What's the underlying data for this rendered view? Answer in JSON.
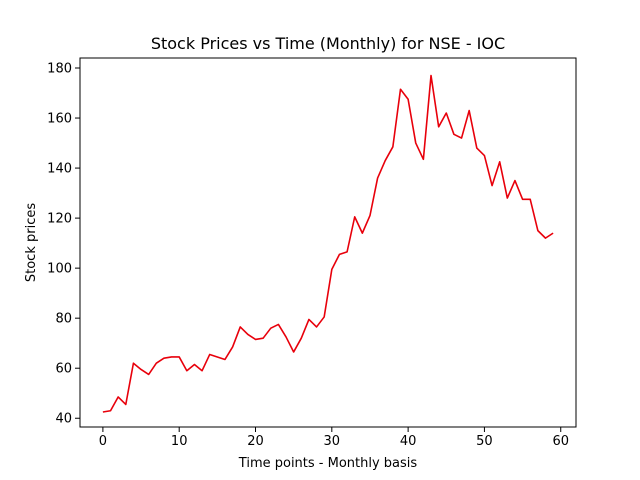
{
  "chart_data": {
    "type": "line",
    "title": "Stock Prices vs Time (Monthly) for NSE - IOC",
    "xlabel": "Time points - Monthly basis",
    "ylabel": "Stock prices",
    "xlim": [
      -3,
      62
    ],
    "ylim": [
      36.5,
      184
    ],
    "xticks": [
      0,
      10,
      20,
      30,
      40,
      50,
      60
    ],
    "yticks": [
      40,
      60,
      80,
      100,
      120,
      140,
      160,
      180
    ],
    "grid": false,
    "series": [
      {
        "color": "#e8000b",
        "x": [
          0,
          1,
          2,
          3,
          4,
          5,
          6,
          7,
          8,
          9,
          10,
          11,
          12,
          13,
          14,
          15,
          16,
          17,
          18,
          19,
          20,
          21,
          22,
          23,
          24,
          25,
          26,
          27,
          28,
          29,
          30,
          31,
          32,
          33,
          34,
          35,
          36,
          37,
          38,
          39,
          40,
          41,
          42,
          43,
          44,
          45,
          46,
          47,
          48,
          49,
          50,
          51,
          52,
          53,
          54,
          55,
          56,
          57,
          58,
          59
        ],
        "values": [
          42.5,
          43,
          48.5,
          45.5,
          62,
          59.5,
          57.5,
          62,
          64,
          64.5,
          64.5,
          59,
          61.5,
          59,
          65.5,
          64.5,
          63.5,
          68.5,
          76.5,
          73.5,
          71.5,
          72,
          76,
          77.5,
          72.5,
          66.5,
          72,
          79.5,
          76.5,
          80.5,
          99.5,
          105.5,
          106.5,
          120.5,
          114,
          121,
          136,
          143,
          148.5,
          171.5,
          167.5,
          150,
          143.5,
          177,
          156.5,
          162,
          153.5,
          152,
          163,
          148,
          145,
          133,
          142.5,
          128,
          135,
          127.5,
          127.5,
          115,
          112,
          114
        ]
      }
    ]
  }
}
